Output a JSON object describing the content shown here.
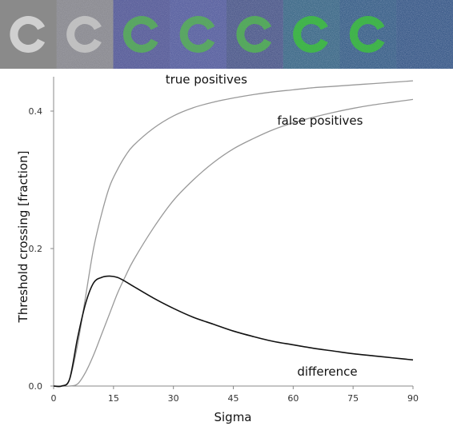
{
  "strip": {
    "panel_count": 8,
    "panels_with_ring": 7,
    "ring_colors": [
      "#d0d0d0",
      "#c8c8c8",
      "#58b058",
      "#58b058",
      "#55b455",
      "#40c040",
      "#3fc03f"
    ],
    "background_colors": [
      "#8a8a8a",
      "#8c8c92",
      "#5a5f9a",
      "#5a62a0",
      "#505c8c",
      "#3e6a88",
      "#3a6088",
      "#3a5a88"
    ]
  },
  "chart_data": {
    "type": "line",
    "xlabel": "Sigma",
    "ylabel": "Threshold crossing  [fraction]",
    "xlim": [
      0,
      90
    ],
    "ylim": [
      0,
      0.45
    ],
    "xticks": [
      "0",
      "15",
      "30",
      "45",
      "60",
      "75",
      "90"
    ],
    "yticks": [
      "0.0",
      "0.2",
      "0.4"
    ],
    "x": [
      0,
      2,
      4,
      6,
      8,
      10,
      12,
      14,
      16,
      18,
      20,
      25,
      30,
      35,
      40,
      45,
      50,
      55,
      60,
      65,
      70,
      75,
      80,
      85,
      90
    ],
    "series": [
      {
        "name": "true positives",
        "color": "#999999",
        "values": [
          0,
          0,
          0.01,
          0.06,
          0.13,
          0.2,
          0.25,
          0.29,
          0.315,
          0.335,
          0.35,
          0.375,
          0.393,
          0.405,
          0.413,
          0.419,
          0.424,
          0.428,
          0.431,
          0.434,
          0.436,
          0.438,
          0.44,
          0.442,
          0.444
        ]
      },
      {
        "name": "false positives",
        "color": "#999999",
        "values": [
          0,
          0,
          0,
          0.003,
          0.02,
          0.045,
          0.075,
          0.105,
          0.135,
          0.16,
          0.183,
          0.23,
          0.27,
          0.3,
          0.325,
          0.345,
          0.36,
          0.373,
          0.383,
          0.391,
          0.398,
          0.404,
          0.409,
          0.413,
          0.417
        ]
      },
      {
        "name": "difference",
        "color": "#111111",
        "values": [
          0,
          0,
          0.01,
          0.07,
          0.12,
          0.15,
          0.158,
          0.16,
          0.158,
          0.152,
          0.145,
          0.128,
          0.113,
          0.1,
          0.09,
          0.08,
          0.072,
          0.065,
          0.06,
          0.055,
          0.051,
          0.047,
          0.044,
          0.041,
          0.038
        ]
      }
    ],
    "annotations": [
      {
        "text": "true positives",
        "x": 28,
        "y": 0.44
      },
      {
        "text": "false positives",
        "x": 56,
        "y": 0.38
      },
      {
        "text": "difference",
        "x": 61,
        "y": 0.015
      }
    ]
  }
}
